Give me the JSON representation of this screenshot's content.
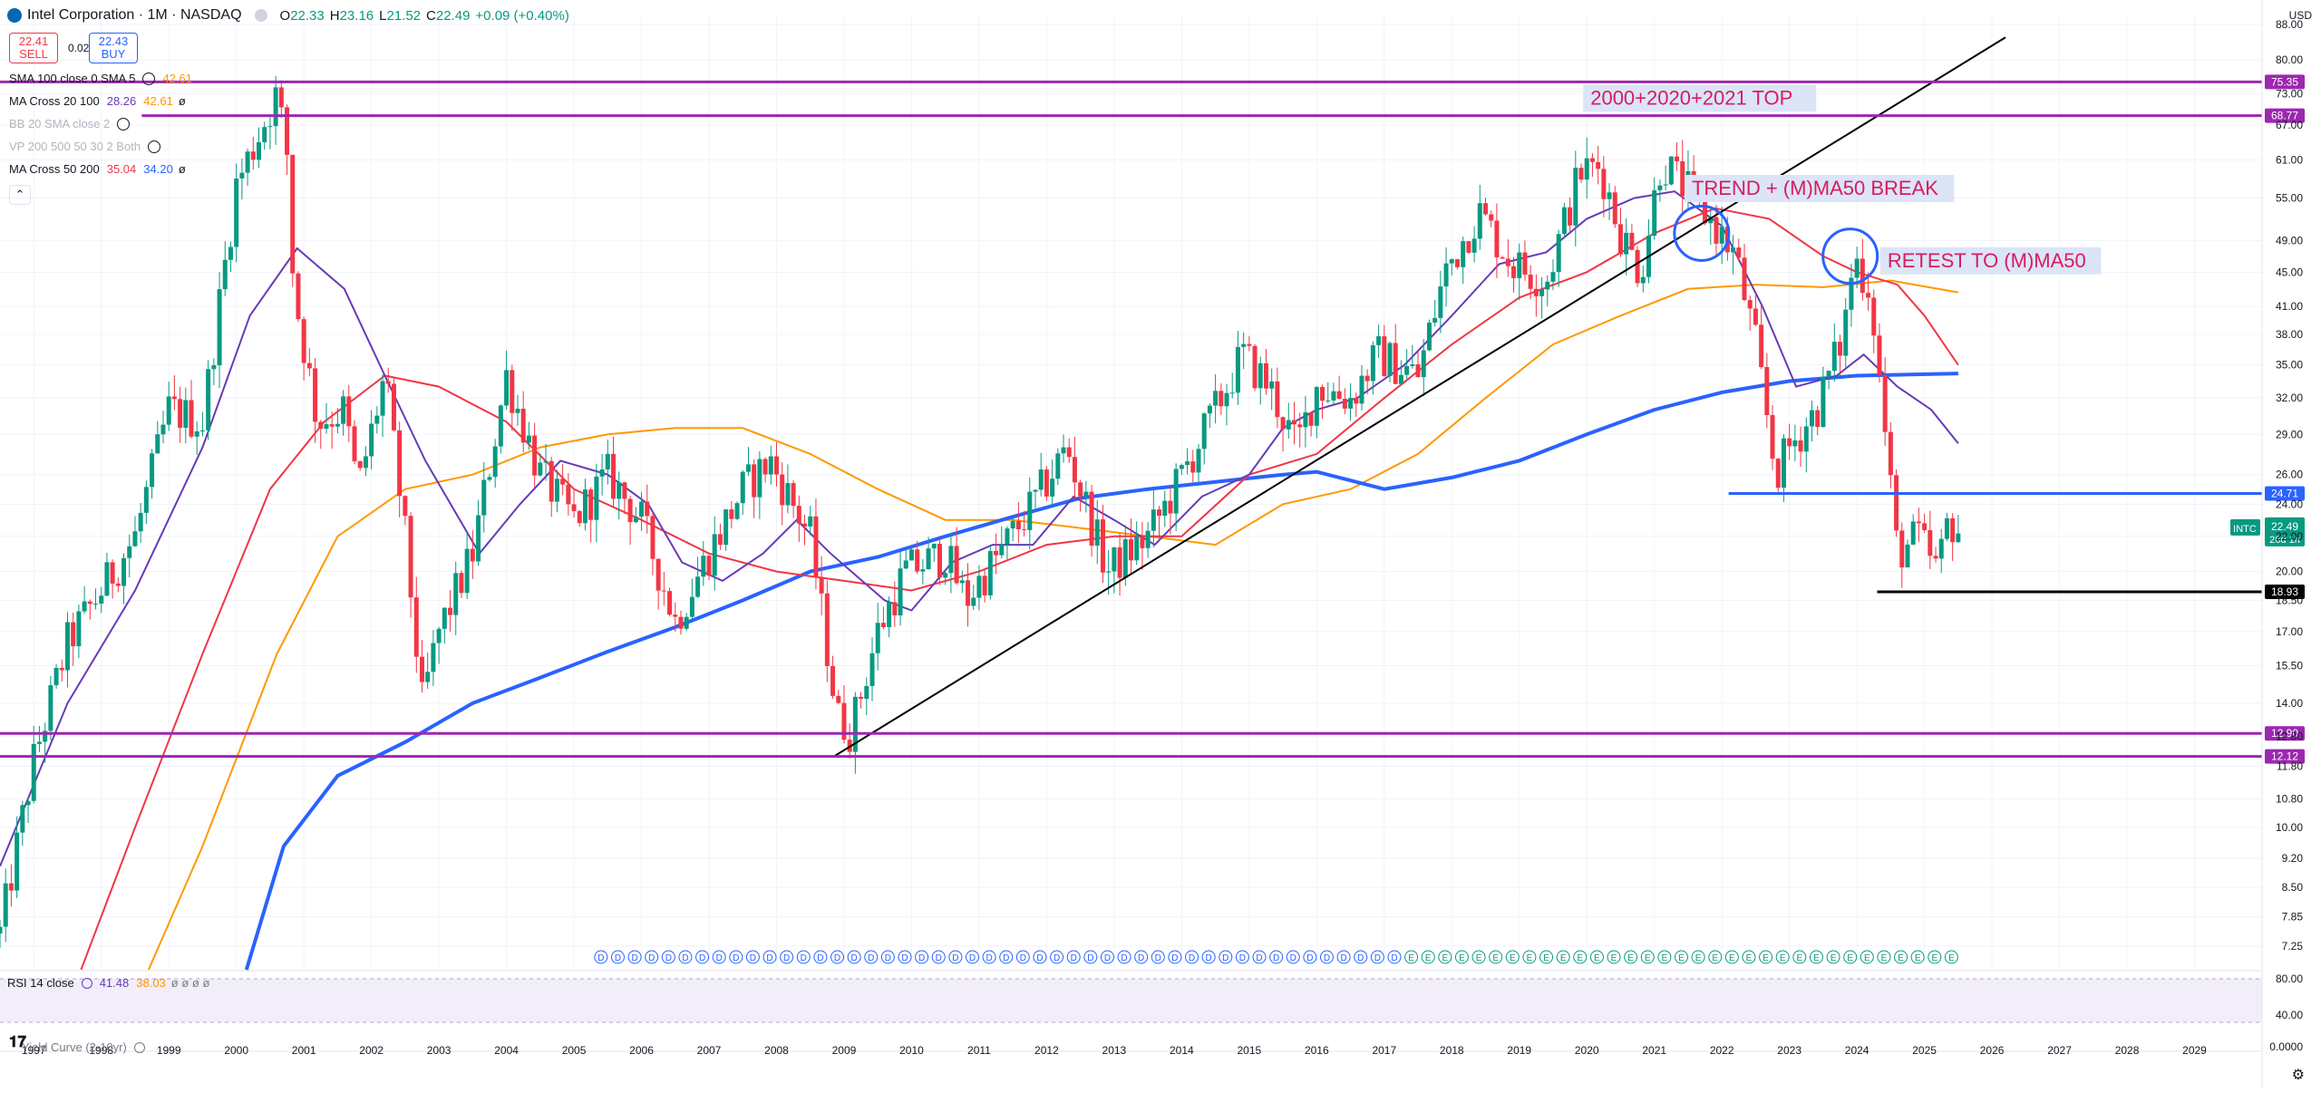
{
  "header": {
    "symbol": "Intel Corporation · 1M · NASDAQ",
    "o_key": "O",
    "o_val": "22.33",
    "h_key": "H",
    "h_val": "23.16",
    "l_key": "L",
    "l_val": "21.52",
    "c_key": "C",
    "c_val": "22.49",
    "change": "+0.09 (+0.40%)",
    "sell_price": "22.41",
    "sell_label": "SELL",
    "spread": "0.02",
    "buy_price": "22.43",
    "buy_label": "BUY",
    "currency": "USD"
  },
  "indicators": [
    {
      "name": "SMA 100 close 0 SMA 5",
      "v1": "42.61",
      "v1_color": "#ff9800",
      "v2": "",
      "v2_color": ""
    },
    {
      "name": "MA Cross 20 100",
      "v1": "28.26",
      "v1_color": "#673ab7",
      "v2": "42.61",
      "v2_color": "#ff9800"
    },
    {
      "name": "BB 20 SMA close 2",
      "v1": "",
      "v1_color": "",
      "v2": "",
      "v2_color": ""
    },
    {
      "name": "VP 200 500 50 30 2 Both",
      "v1": "",
      "v1_color": "",
      "v2": "",
      "v2_color": ""
    },
    {
      "name": "MA Cross 50 200",
      "v1": "35.04",
      "v1_color": "#f23645",
      "v2": "34.20",
      "v2_color": "#2962ff"
    }
  ],
  "rsi": {
    "label": "RSI 14 close",
    "v1": "41.48",
    "v2": "38.03",
    "axis": [
      "80.00",
      "40.00",
      "0.0000"
    ]
  },
  "yield_label": "Yield Curve (2-10yr)",
  "icons": {
    "collapse": "chevron-up-icon",
    "eye": "eye-icon",
    "settings": "gear-icon",
    "logo": "tradingview-logo-icon"
  },
  "chart_data": {
    "type": "candlestick",
    "title": "Intel Corporation · 1M · NASDAQ",
    "scale": "log",
    "ylim": [
      6.8,
      90
    ],
    "xlim": [
      1996.5,
      2030.0
    ],
    "y_ticks": [
      "88.00",
      "80.00",
      "73.00",
      "67.00",
      "61.00",
      "55.00",
      "49.00",
      "45.00",
      "41.00",
      "38.00",
      "35.00",
      "32.00",
      "29.00",
      "26.00",
      "24.00",
      "22.00",
      "20.00",
      "18.50",
      "17.00",
      "15.50",
      "14.00",
      "12.80",
      "11.80",
      "10.80",
      "10.00",
      "9.20",
      "8.50",
      "7.85",
      "7.25"
    ],
    "x_ticks": [
      "1997",
      "1998",
      "1999",
      "2000",
      "2001",
      "2002",
      "2003",
      "2004",
      "2005",
      "2006",
      "2007",
      "2008",
      "2009",
      "2010",
      "2011",
      "2012",
      "2013",
      "2014",
      "2015",
      "2016",
      "2017",
      "2018",
      "2019",
      "2020",
      "2021",
      "2022",
      "2023",
      "2024",
      "2025",
      "2026",
      "2027",
      "2028",
      "2029"
    ],
    "anchors": [
      [
        1996.5,
        7.5
      ],
      [
        1997.0,
        12.0
      ],
      [
        1997.5,
        16.5
      ],
      [
        1998.0,
        19.0
      ],
      [
        1998.5,
        22.0
      ],
      [
        1999.0,
        31.0
      ],
      [
        1999.5,
        30.0
      ],
      [
        2000.0,
        57.0
      ],
      [
        2000.6,
        73.0
      ],
      [
        2000.75,
        62.0
      ],
      [
        2000.85,
        43.0
      ],
      [
        2001.2,
        30.0
      ],
      [
        2001.6,
        31.0
      ],
      [
        2001.8,
        25.0
      ],
      [
        2002.2,
        34.0
      ],
      [
        2002.5,
        22.0
      ],
      [
        2002.75,
        14.0
      ],
      [
        2003.0,
        17.0
      ],
      [
        2003.5,
        21.0
      ],
      [
        2004.0,
        34.0
      ],
      [
        2004.5,
        26.0
      ],
      [
        2005.0,
        23.0
      ],
      [
        2005.5,
        26.0
      ],
      [
        2006.0,
        23.0
      ],
      [
        2006.5,
        17.5
      ],
      [
        2007.0,
        21.0
      ],
      [
        2007.5,
        25.0
      ],
      [
        2007.9,
        27.0
      ],
      [
        2008.5,
        22.0
      ],
      [
        2008.9,
        13.5
      ],
      [
        2009.1,
        13.0
      ],
      [
        2009.5,
        17.0
      ],
      [
        2009.9,
        20.0
      ],
      [
        2010.5,
        21.0
      ],
      [
        2010.8,
        18.5
      ],
      [
        2011.3,
        21.0
      ],
      [
        2011.8,
        24.0
      ],
      [
        2012.3,
        28.0
      ],
      [
        2012.9,
        20.0
      ],
      [
        2013.5,
        22.0
      ],
      [
        2013.9,
        25.0
      ],
      [
        2014.5,
        31.0
      ],
      [
        2014.9,
        36.0
      ],
      [
        2015.3,
        33.0
      ],
      [
        2015.7,
        28.0
      ],
      [
        2016.0,
        33.0
      ],
      [
        2016.5,
        32.0
      ],
      [
        2016.9,
        36.0
      ],
      [
        2017.5,
        34.0
      ],
      [
        2017.9,
        45.0
      ],
      [
        2018.4,
        53.0
      ],
      [
        2018.9,
        46.0
      ],
      [
        2019.4,
        44.0
      ],
      [
        2019.9,
        59.0
      ],
      [
        2020.2,
        60.0
      ],
      [
        2020.5,
        50.0
      ],
      [
        2020.8,
        45.0
      ],
      [
        2021.1,
        61.0
      ],
      [
        2021.5,
        56.0
      ],
      [
        2021.9,
        51.0
      ],
      [
        2022.2,
        47.0
      ],
      [
        2022.5,
        37.0
      ],
      [
        2022.8,
        26.0
      ],
      [
        2023.0,
        28.0
      ],
      [
        2023.4,
        31.0
      ],
      [
        2023.8,
        38.0
      ],
      [
        2023.95,
        47.0
      ],
      [
        2024.2,
        43.0
      ],
      [
        2024.4,
        30.0
      ],
      [
        2024.6,
        21.0
      ],
      [
        2024.9,
        22.0
      ],
      [
        2025.2,
        20.0
      ],
      [
        2025.35,
        23.0
      ],
      [
        2025.5,
        22.49
      ]
    ],
    "series": [
      {
        "name": "SMA 100",
        "color": "#ff9800",
        "points": [
          [
            1998.7,
            6.8
          ],
          [
            1999.5,
            9.5
          ],
          [
            2000.6,
            16.0
          ],
          [
            2001.5,
            22.0
          ],
          [
            2002.5,
            25.0
          ],
          [
            2003.5,
            26.0
          ],
          [
            2004.5,
            28.0
          ],
          [
            2005.5,
            29.0
          ],
          [
            2006.5,
            29.5
          ],
          [
            2007.5,
            29.5
          ],
          [
            2008.5,
            27.5
          ],
          [
            2009.5,
            25.0
          ],
          [
            2010.5,
            23.0
          ],
          [
            2011.5,
            23.0
          ],
          [
            2012.5,
            22.5
          ],
          [
            2013.5,
            22.0
          ],
          [
            2014.5,
            21.5
          ],
          [
            2015.5,
            24.0
          ],
          [
            2016.5,
            25.0
          ],
          [
            2017.5,
            27.5
          ],
          [
            2018.5,
            32.0
          ],
          [
            2019.5,
            37.0
          ],
          [
            2020.5,
            40.0
          ],
          [
            2021.5,
            43.0
          ],
          [
            2022.5,
            43.5
          ],
          [
            2023.5,
            43.2
          ],
          [
            2024.5,
            44.0
          ],
          [
            2025.5,
            42.6
          ]
        ]
      },
      {
        "name": "SMA 200 (MA Cross)",
        "color": "#2962ff",
        "width": 4,
        "points": [
          [
            2000.15,
            6.8
          ],
          [
            2000.7,
            9.5
          ],
          [
            2001.5,
            11.5
          ],
          [
            2002.5,
            12.6
          ],
          [
            2003.5,
            14.0
          ],
          [
            2004.5,
            15.0
          ],
          [
            2005.5,
            16.1
          ],
          [
            2006.5,
            17.2
          ],
          [
            2007.5,
            18.5
          ],
          [
            2008.5,
            20.0
          ],
          [
            2009.5,
            20.8
          ],
          [
            2010.5,
            22.0
          ],
          [
            2011.5,
            23.2
          ],
          [
            2012.5,
            24.4
          ],
          [
            2013.5,
            25.0
          ],
          [
            2014.5,
            25.5
          ],
          [
            2015.5,
            26.0
          ],
          [
            2016.0,
            26.2
          ],
          [
            2017.0,
            25.0
          ],
          [
            2018.0,
            25.8
          ],
          [
            2019.0,
            27.0
          ],
          [
            2020.0,
            29.0
          ],
          [
            2021.0,
            31.0
          ],
          [
            2022.0,
            32.5
          ],
          [
            2023.0,
            33.5
          ],
          [
            2024.0,
            34.0
          ],
          [
            2025.5,
            34.2
          ]
        ]
      },
      {
        "name": "SMA 50 (MA Cross)",
        "color": "#f23645",
        "points": [
          [
            1997.7,
            6.8
          ],
          [
            1998.5,
            10.0
          ],
          [
            1999.5,
            16.0
          ],
          [
            2000.5,
            25.0
          ],
          [
            2001.3,
            30.0
          ],
          [
            2002.2,
            34.0
          ],
          [
            2003.0,
            33.0
          ],
          [
            2004.0,
            30.0
          ],
          [
            2005.0,
            25.0
          ],
          [
            2006.0,
            23.0
          ],
          [
            2007.0,
            21.0
          ],
          [
            2008.0,
            20.0
          ],
          [
            2009.0,
            19.5
          ],
          [
            2010.0,
            19.0
          ],
          [
            2011.0,
            20.0
          ],
          [
            2012.0,
            21.5
          ],
          [
            2013.0,
            22.0
          ],
          [
            2014.0,
            22.0
          ],
          [
            2015.0,
            26.0
          ],
          [
            2016.0,
            27.5
          ],
          [
            2017.0,
            32.0
          ],
          [
            2018.0,
            37.0
          ],
          [
            2019.0,
            42.0
          ],
          [
            2020.0,
            45.0
          ],
          [
            2021.0,
            50.0
          ],
          [
            2021.9,
            53.5
          ],
          [
            2022.7,
            52.0
          ],
          [
            2023.5,
            47.0
          ],
          [
            2024.0,
            45.0
          ],
          [
            2024.6,
            43.5
          ],
          [
            2025.0,
            40.0
          ],
          [
            2025.5,
            35.0
          ]
        ]
      },
      {
        "name": "SMA 20 (MA Cross)",
        "color": "#673ab7",
        "points": [
          [
            1996.5,
            9.0
          ],
          [
            1997.5,
            14.0
          ],
          [
            1998.5,
            19.0
          ],
          [
            1999.5,
            28.0
          ],
          [
            2000.2,
            40.0
          ],
          [
            2000.9,
            48.0
          ],
          [
            2001.6,
            43.0
          ],
          [
            2002.2,
            34.0
          ],
          [
            2002.8,
            27.0
          ],
          [
            2003.6,
            21.0
          ],
          [
            2004.2,
            24.0
          ],
          [
            2004.8,
            27.0
          ],
          [
            2005.5,
            26.0
          ],
          [
            2006.1,
            24.0
          ],
          [
            2006.6,
            20.5
          ],
          [
            2007.2,
            19.5
          ],
          [
            2007.8,
            21.0
          ],
          [
            2008.3,
            23.0
          ],
          [
            2008.8,
            21.0
          ],
          [
            2009.6,
            18.5
          ],
          [
            2010.0,
            18.0
          ],
          [
            2010.6,
            20.5
          ],
          [
            2011.2,
            21.5
          ],
          [
            2011.8,
            21.5
          ],
          [
            2012.4,
            24.5
          ],
          [
            2013.0,
            23.0
          ],
          [
            2013.6,
            21.5
          ],
          [
            2014.3,
            24.5
          ],
          [
            2015.0,
            26.0
          ],
          [
            2015.5,
            29.5
          ],
          [
            2016.0,
            31.0
          ],
          [
            2016.6,
            32.0
          ],
          [
            2017.3,
            35.0
          ],
          [
            2018.0,
            40.0
          ],
          [
            2018.7,
            46.0
          ],
          [
            2019.4,
            47.5
          ],
          [
            2020.0,
            52.0
          ],
          [
            2020.7,
            55.0
          ],
          [
            2021.3,
            56.0
          ],
          [
            2022.0,
            51.0
          ],
          [
            2022.6,
            41.0
          ],
          [
            2023.1,
            33.0
          ],
          [
            2023.7,
            34.0
          ],
          [
            2024.1,
            36.0
          ],
          [
            2024.6,
            33.0
          ],
          [
            2025.1,
            31.0
          ],
          [
            2025.5,
            28.3
          ]
        ]
      }
    ],
    "levels": [
      {
        "price": "75.35",
        "color": "#9c27b0",
        "from": 1996.5,
        "to": 2029.9
      },
      {
        "price": "68.77",
        "color": "#9c27b0",
        "from": 1998.6,
        "to": 2029.9
      },
      {
        "price": "24.71",
        "color": "#2962ff",
        "from": 2022.1,
        "to": 2029.9
      },
      {
        "price": "18.93",
        "color": "#000000",
        "from": 2024.3,
        "to": 2029.9
      },
      {
        "price": "12.90",
        "color": "#9c27b0",
        "from": 1996.5,
        "to": 2029.9
      },
      {
        "price": "12.12",
        "color": "#9c27b0",
        "from": 1996.5,
        "to": 2029.9
      }
    ],
    "trendline": {
      "color": "#000000",
      "from": [
        2008.85,
        12.12
      ],
      "to": [
        2026.2,
        85.0
      ]
    },
    "last_price": {
      "symbol": "INTC",
      "price": "22.49",
      "countdown": "26d 1h",
      "color": "#089981"
    },
    "annotations": [
      {
        "text": "2000+2020+2021 TOP",
        "x": 2020.0,
        "y": 75.35
      },
      {
        "text": "TREND + (M)MA50 BREAK",
        "x": 2021.5,
        "y": 59.0
      },
      {
        "text": "RETEST TO (M)MA50",
        "x": 2024.4,
        "y": 48.5
      }
    ],
    "circles": [
      {
        "x": 2021.7,
        "y": 50.0
      },
      {
        "x": 2023.9,
        "y": 47.0
      }
    ],
    "events": "D D D … E E E"
  }
}
